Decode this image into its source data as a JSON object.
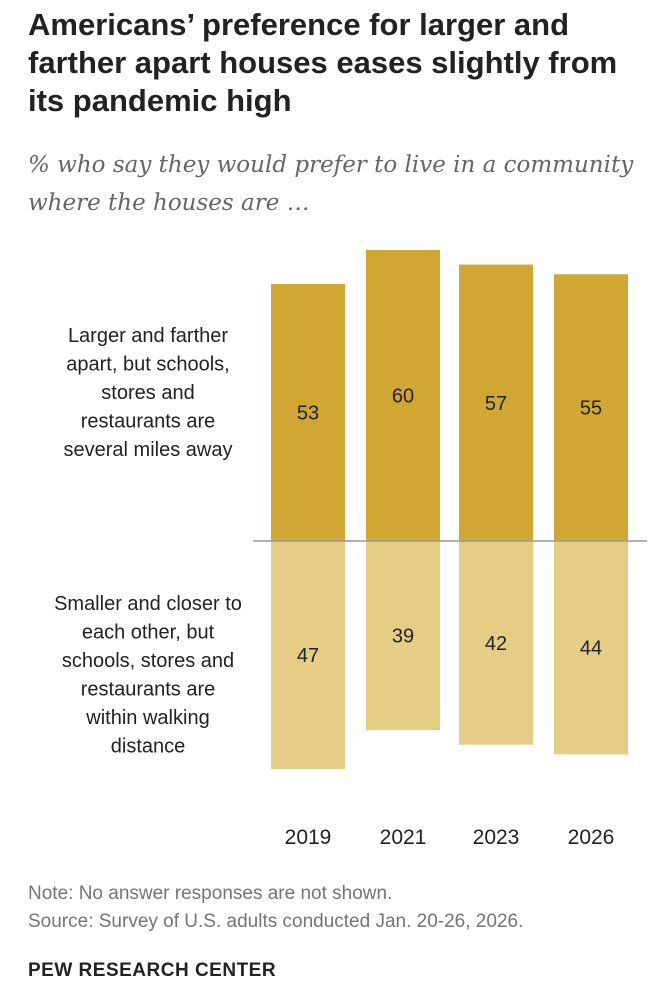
{
  "header": {
    "title": "Americans’ preference for larger and farther apart houses eases slightly from its pandemic high",
    "subtitle": "% who say they would prefer to live in a community where the houses are …"
  },
  "chart_data": {
    "type": "bar",
    "subtype": "diverging-stacked",
    "categories": [
      "2019",
      "2021",
      "2023",
      "2026"
    ],
    "series": [
      {
        "name": "Larger and farther apart, but schools, stores and restaurants are several miles away",
        "label_lines": [
          "Larger and farther",
          "apart, but schools,",
          "stores and",
          "restaurants are",
          "several miles away"
        ],
        "color": "#D1A733",
        "values": [
          53,
          60,
          57,
          55
        ],
        "direction": "up"
      },
      {
        "name": "Smaller and closer to each other, but schools, stores and restaurants are within walking distance",
        "label_lines": [
          "Smaller and closer to",
          "each other, but",
          "schools, stores and",
          "restaurants are",
          "within walking",
          "distance"
        ],
        "color": "#E5CD85",
        "values": [
          47,
          39,
          42,
          44
        ],
        "direction": "down"
      }
    ],
    "axis_color": "#999999"
  },
  "footer": {
    "note": "Note: No answer responses are not shown.",
    "source": "Source: Survey of U.S. adults conducted Jan. 20-26, 2026.",
    "brand": "PEW RESEARCH CENTER"
  }
}
